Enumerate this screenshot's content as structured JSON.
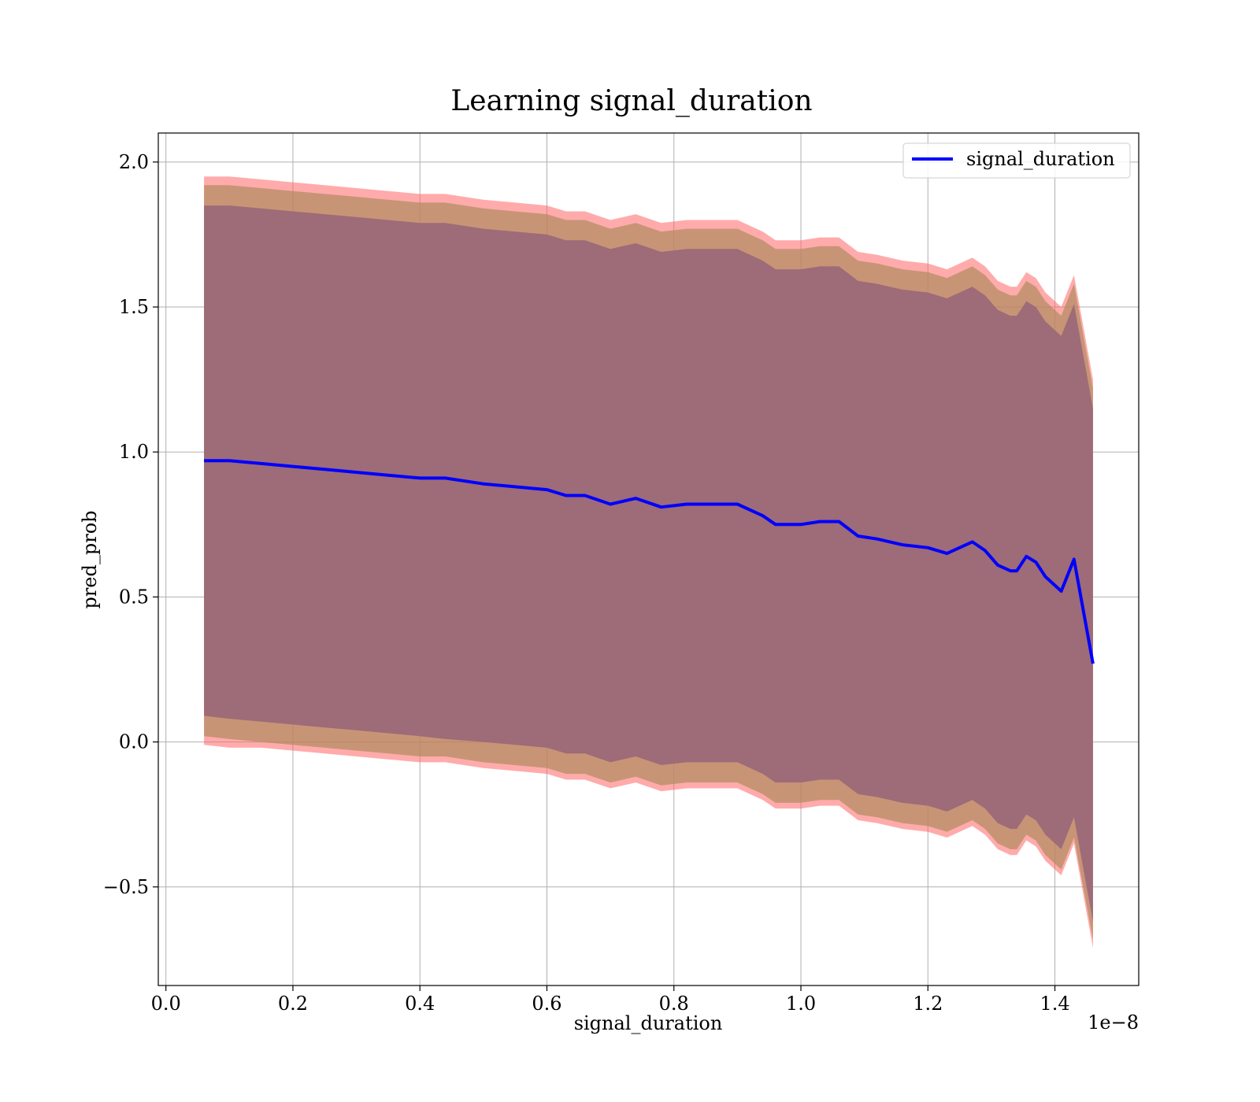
{
  "chart_data": {
    "type": "line",
    "title": "Learning signal_duration",
    "xlabel": "signal_duration",
    "ylabel": "pred_prob",
    "x_offset_label": "1e−8",
    "xlim": [
      -0.012,
      1.532
    ],
    "ylim": [
      -0.84,
      2.1
    ],
    "x_ticks": [
      0.0,
      0.2,
      0.4,
      0.6,
      0.8,
      1.0,
      1.2,
      1.4
    ],
    "x_tick_labels": [
      "0.0",
      "0.2",
      "0.4",
      "0.6",
      "0.8",
      "1.0",
      "1.2",
      "1.4"
    ],
    "y_ticks": [
      -0.5,
      0.0,
      0.5,
      1.0,
      1.5,
      2.0
    ],
    "y_tick_labels": [
      "−0.5",
      "0.0",
      "0.5",
      "1.0",
      "1.5",
      "2.0"
    ],
    "grid": true,
    "legend_position": "top-right",
    "series": [
      {
        "name": "signal_duration",
        "color": "#0000ff",
        "x": [
          0.06,
          0.1,
          0.15,
          0.2,
          0.25,
          0.3,
          0.35,
          0.4,
          0.44,
          0.5,
          0.55,
          0.6,
          0.63,
          0.66,
          0.7,
          0.74,
          0.78,
          0.82,
          0.86,
          0.9,
          0.94,
          0.96,
          1.0,
          1.03,
          1.06,
          1.09,
          1.12,
          1.16,
          1.2,
          1.23,
          1.27,
          1.29,
          1.31,
          1.33,
          1.34,
          1.355,
          1.37,
          1.385,
          1.41,
          1.43,
          1.46
        ],
        "y": [
          0.97,
          0.97,
          0.96,
          0.95,
          0.94,
          0.93,
          0.92,
          0.91,
          0.91,
          0.89,
          0.88,
          0.87,
          0.85,
          0.85,
          0.82,
          0.84,
          0.81,
          0.82,
          0.82,
          0.82,
          0.78,
          0.75,
          0.75,
          0.76,
          0.76,
          0.71,
          0.7,
          0.68,
          0.67,
          0.65,
          0.69,
          0.66,
          0.61,
          0.59,
          0.59,
          0.64,
          0.62,
          0.57,
          0.52,
          0.63,
          0.27
        ]
      }
    ],
    "bands": [
      {
        "name": "",
        "color": "#ff6666",
        "opacity": 0.55,
        "x": [
          0.06,
          0.1,
          0.15,
          0.2,
          0.25,
          0.3,
          0.35,
          0.4,
          0.44,
          0.5,
          0.55,
          0.6,
          0.63,
          0.66,
          0.7,
          0.74,
          0.78,
          0.82,
          0.86,
          0.9,
          0.94,
          0.96,
          1.0,
          1.03,
          1.06,
          1.09,
          1.12,
          1.16,
          1.2,
          1.23,
          1.27,
          1.29,
          1.31,
          1.33,
          1.34,
          1.355,
          1.37,
          1.385,
          1.41,
          1.43,
          1.46
        ],
        "lower": [
          -0.01,
          -0.02,
          -0.02,
          -0.03,
          -0.04,
          -0.05,
          -0.06,
          -0.07,
          -0.07,
          -0.09,
          -0.1,
          -0.11,
          -0.13,
          -0.13,
          -0.16,
          -0.14,
          -0.17,
          -0.16,
          -0.16,
          -0.16,
          -0.2,
          -0.23,
          -0.23,
          -0.22,
          -0.22,
          -0.27,
          -0.28,
          -0.3,
          -0.31,
          -0.33,
          -0.29,
          -0.32,
          -0.37,
          -0.39,
          -0.39,
          -0.34,
          -0.36,
          -0.41,
          -0.46,
          -0.35,
          -0.71
        ],
        "upper": [
          1.95,
          1.95,
          1.94,
          1.93,
          1.92,
          1.91,
          1.9,
          1.89,
          1.89,
          1.87,
          1.86,
          1.85,
          1.83,
          1.83,
          1.8,
          1.82,
          1.79,
          1.8,
          1.8,
          1.8,
          1.76,
          1.73,
          1.73,
          1.74,
          1.74,
          1.69,
          1.68,
          1.66,
          1.65,
          1.63,
          1.67,
          1.64,
          1.59,
          1.57,
          1.57,
          1.62,
          1.6,
          1.55,
          1.5,
          1.61,
          1.25
        ]
      },
      {
        "name": "",
        "color": "#b08a60",
        "opacity": 0.7,
        "x": [
          0.06,
          0.1,
          0.15,
          0.2,
          0.25,
          0.3,
          0.35,
          0.4,
          0.44,
          0.5,
          0.55,
          0.6,
          0.63,
          0.66,
          0.7,
          0.74,
          0.78,
          0.82,
          0.86,
          0.9,
          0.94,
          0.96,
          1.0,
          1.03,
          1.06,
          1.09,
          1.12,
          1.16,
          1.2,
          1.23,
          1.27,
          1.29,
          1.31,
          1.33,
          1.34,
          1.355,
          1.37,
          1.385,
          1.41,
          1.43,
          1.46
        ],
        "lower": [
          0.02,
          0.01,
          0.0,
          -0.01,
          -0.02,
          -0.03,
          -0.04,
          -0.05,
          -0.05,
          -0.07,
          -0.08,
          -0.09,
          -0.11,
          -0.11,
          -0.14,
          -0.12,
          -0.15,
          -0.14,
          -0.14,
          -0.14,
          -0.18,
          -0.21,
          -0.21,
          -0.2,
          -0.2,
          -0.25,
          -0.26,
          -0.28,
          -0.29,
          -0.31,
          -0.27,
          -0.3,
          -0.35,
          -0.37,
          -0.37,
          -0.32,
          -0.34,
          -0.39,
          -0.44,
          -0.33,
          -0.68
        ],
        "upper": [
          1.92,
          1.92,
          1.91,
          1.9,
          1.89,
          1.88,
          1.87,
          1.86,
          1.86,
          1.84,
          1.83,
          1.82,
          1.8,
          1.8,
          1.77,
          1.79,
          1.76,
          1.77,
          1.77,
          1.77,
          1.73,
          1.7,
          1.7,
          1.71,
          1.71,
          1.66,
          1.65,
          1.63,
          1.62,
          1.6,
          1.64,
          1.61,
          1.56,
          1.54,
          1.54,
          1.59,
          1.57,
          1.52,
          1.47,
          1.58,
          1.22
        ]
      },
      {
        "name": "",
        "color": "#9e6b78",
        "opacity": 1.0,
        "x": [
          0.06,
          0.1,
          0.15,
          0.2,
          0.25,
          0.3,
          0.35,
          0.4,
          0.44,
          0.5,
          0.55,
          0.6,
          0.63,
          0.66,
          0.7,
          0.74,
          0.78,
          0.82,
          0.86,
          0.9,
          0.94,
          0.96,
          1.0,
          1.03,
          1.06,
          1.09,
          1.12,
          1.16,
          1.2,
          1.23,
          1.27,
          1.29,
          1.31,
          1.33,
          1.34,
          1.355,
          1.37,
          1.385,
          1.41,
          1.43,
          1.46
        ],
        "lower": [
          0.09,
          0.08,
          0.07,
          0.06,
          0.05,
          0.04,
          0.03,
          0.02,
          0.01,
          0.0,
          -0.01,
          -0.02,
          -0.04,
          -0.04,
          -0.07,
          -0.05,
          -0.08,
          -0.07,
          -0.07,
          -0.07,
          -0.11,
          -0.14,
          -0.14,
          -0.13,
          -0.13,
          -0.18,
          -0.19,
          -0.21,
          -0.22,
          -0.24,
          -0.2,
          -0.23,
          -0.28,
          -0.3,
          -0.3,
          -0.25,
          -0.27,
          -0.32,
          -0.37,
          -0.26,
          -0.62
        ],
        "upper": [
          1.85,
          1.85,
          1.84,
          1.83,
          1.82,
          1.81,
          1.8,
          1.79,
          1.79,
          1.77,
          1.76,
          1.75,
          1.73,
          1.73,
          1.7,
          1.72,
          1.69,
          1.7,
          1.7,
          1.7,
          1.66,
          1.63,
          1.63,
          1.64,
          1.64,
          1.59,
          1.58,
          1.56,
          1.55,
          1.53,
          1.57,
          1.54,
          1.49,
          1.47,
          1.47,
          1.52,
          1.5,
          1.45,
          1.4,
          1.51,
          1.15
        ]
      }
    ]
  }
}
